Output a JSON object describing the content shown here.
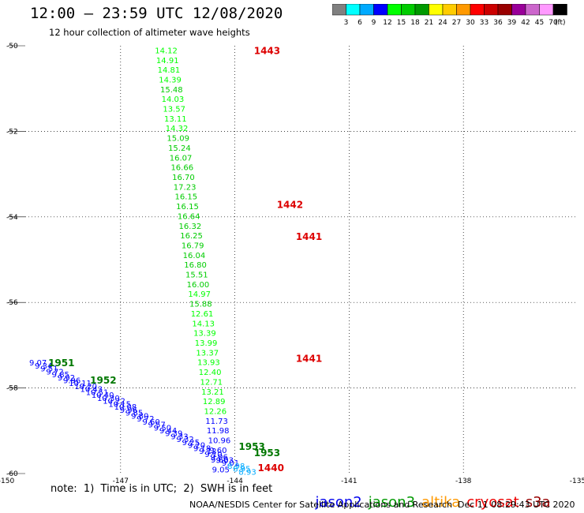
{
  "header": {
    "title": "12:00 — 23:59 UTC 12/08/2020",
    "subtitle": "12 hour collection of altimeter wave heights"
  },
  "colorbar": {
    "colors": [
      "#808080",
      "#00ffff",
      "#00aaff",
      "#0000ff",
      "#00ff00",
      "#00cc00",
      "#009900",
      "#ffff00",
      "#ffcc00",
      "#ff9900",
      "#ff0000",
      "#cc0000",
      "#990000",
      "#990099",
      "#cc66cc",
      "#ff99ff",
      "#000000"
    ],
    "labels": [
      "3",
      "6",
      "9",
      "12",
      "15",
      "18",
      "21",
      "24",
      "27",
      "30",
      "33",
      "36",
      "39",
      "42",
      "45",
      "70",
      "(ft)"
    ]
  },
  "chart_data": {
    "type": "scatter",
    "title": "12 hour collection of altimeter wave heights",
    "xlabel": "",
    "ylabel": "",
    "xlim": [
      -150,
      -135
    ],
    "ylim": [
      -60,
      -50
    ],
    "x_ticks": [
      "-150",
      "-147",
      "-144",
      "-141",
      "-138",
      "-135"
    ],
    "y_ticks": [
      "-50",
      "-52",
      "-54",
      "-56",
      "-58",
      "-60"
    ],
    "grid": true,
    "track_n": {
      "x_start": -146.1,
      "y_start": -50.1,
      "x_end": -144.6,
      "y_end": -59.9,
      "values": [
        "14.12",
        "14.91",
        "14.81",
        "14.39",
        "15.48",
        "14.03",
        "13.57",
        "13.11",
        "14.32",
        "15.09",
        "15.24",
        "16.07",
        "16.66",
        "16.70",
        "17.23",
        "16.15",
        "16.15",
        "16.64",
        "16.32",
        "16.25",
        "16.79",
        "16.04",
        "16.80",
        "15.51",
        "16.00",
        "14.97",
        "15.88",
        "12.61",
        "14.13",
        "13.39",
        "13.99",
        "13.37",
        "13.93",
        "12.40",
        "12.71",
        "13.21",
        "12.89",
        "12.26",
        "11.73",
        "11.98",
        "10.96",
        "9.60",
        "9.66",
        "9.05"
      ]
    },
    "track_w": {
      "x_start": -149.4,
      "y_start": -57.4,
      "x_end": -143.9,
      "y_end": -59.95,
      "values": [
        "9.07",
        "9.34",
        "9.51",
        "9.72",
        "9.85",
        "9.92",
        "9.96",
        "10.11",
        "10.20",
        "10.43",
        "10.51",
        "10.40",
        "10.30",
        "10.22",
        "10.15",
        "10.08",
        "9.96",
        "9.85",
        "9.80",
        "9.72",
        "9.60",
        "9.57",
        "9.50",
        "9.44",
        "9.39",
        "9.33",
        "9.32",
        "9.25",
        "9.20",
        "9.18",
        "9.12",
        "9.10",
        "9.06",
        "9.03",
        "9.01",
        "8.98",
        "8.95",
        "8.93"
      ]
    },
    "time_labels": [
      {
        "text": "1443",
        "lon": -143.5,
        "lat": -50.1,
        "color": "#dd0000"
      },
      {
        "text": "1442",
        "lon": -142.9,
        "lat": -53.7,
        "color": "#dd0000"
      },
      {
        "text": "1441",
        "lon": -142.4,
        "lat": -54.45,
        "color": "#dd0000"
      },
      {
        "text": "1441",
        "lon": -142.4,
        "lat": -57.3,
        "color": "#dd0000"
      },
      {
        "text": "1440",
        "lon": -143.4,
        "lat": -59.85,
        "color": "#dd0000"
      },
      {
        "text": "1951",
        "lon": -148.9,
        "lat": -57.4,
        "color": "#007700"
      },
      {
        "text": "1952",
        "lon": -147.8,
        "lat": -57.8,
        "color": "#007700"
      },
      {
        "text": "1953",
        "lon": -143.9,
        "lat": -59.35,
        "color": "#007700"
      },
      {
        "text": "1953",
        "lon": -143.5,
        "lat": -59.5,
        "color": "#007700"
      }
    ]
  },
  "footer": {
    "note": "note:  1)  Time is in UTC;  2)  SWH is in feet",
    "credit": "NOAA/NESDIS Center for Satellite Applications and Research",
    "timestamp": "Dec 11 08:29:43 UTC 2020"
  },
  "legend": [
    {
      "label": "jason2",
      "color": "#0000ee"
    },
    {
      "label": "jason3",
      "color": "#009900"
    },
    {
      "label": "altika",
      "color": "#ff9900"
    },
    {
      "label": "cryosat",
      "color": "#ee0000"
    },
    {
      "label": "s3a",
      "color": "#990000"
    }
  ]
}
